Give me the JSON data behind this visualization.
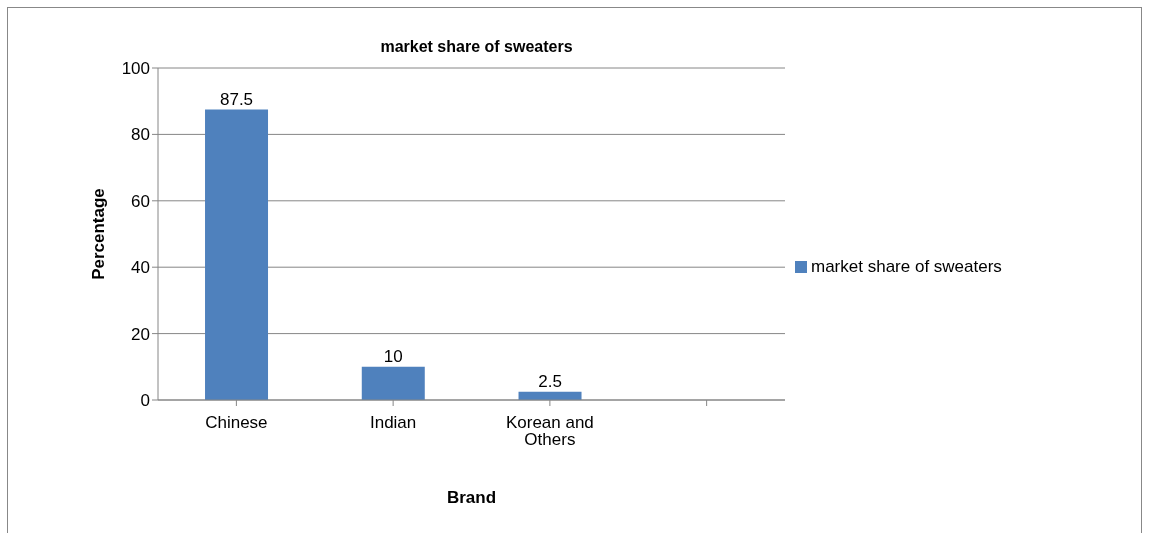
{
  "chart_data": {
    "type": "bar",
    "title": "market share of sweaters",
    "xlabel": "Brand",
    "ylabel": "Percentage",
    "categories": [
      "Chinese",
      "Indian",
      "Korean and Others",
      null
    ],
    "series": [
      {
        "name": "market share of sweaters",
        "color": "#4f81bd",
        "values": [
          87.5,
          10,
          2.5,
          null
        ]
      }
    ],
    "ylim": [
      0,
      100
    ],
    "yticks": [
      0,
      20,
      40,
      60,
      80,
      100
    ],
    "grid": "y",
    "legend": "right",
    "data_labels": true
  }
}
